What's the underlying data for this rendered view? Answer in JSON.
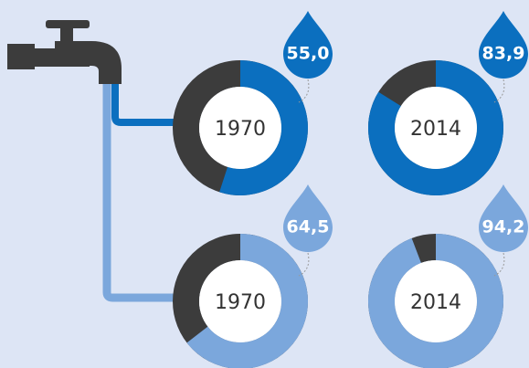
{
  "chart_data": [
    {
      "type": "donut",
      "label": "1970",
      "values": [
        55.0
      ],
      "value_labels": [
        "55,0"
      ],
      "color": "#0b6fbf",
      "rest_color": "#3c3c3c",
      "ylim": [
        0,
        100
      ]
    },
    {
      "type": "donut",
      "label": "2014",
      "values": [
        83.9
      ],
      "value_labels": [
        "83,9"
      ],
      "color": "#0b6fbf",
      "rest_color": "#3c3c3c",
      "ylim": [
        0,
        100
      ]
    },
    {
      "type": "donut",
      "label": "1970",
      "values": [
        64.5
      ],
      "value_labels": [
        "64,5"
      ],
      "color": "#7ba7dc",
      "rest_color": "#3c3c3c",
      "ylim": [
        0,
        100
      ]
    },
    {
      "type": "donut",
      "label": "2014",
      "values": [
        94.2
      ],
      "value_labels": [
        "94,2"
      ],
      "color": "#7ba7dc",
      "rest_color": "#3c3c3c",
      "ylim": [
        0,
        100
      ]
    }
  ]
}
